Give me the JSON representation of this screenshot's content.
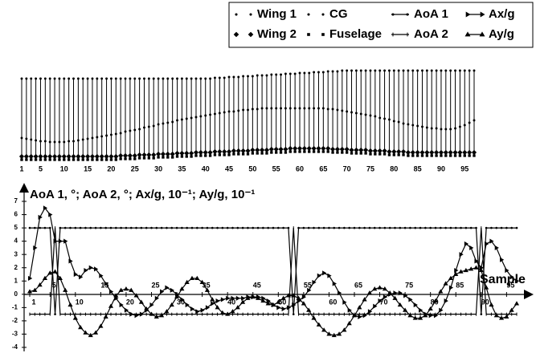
{
  "chart_data": [
    {
      "type": "stick",
      "x": [
        1,
        2,
        3,
        4,
        5,
        6,
        7,
        8,
        9,
        10,
        11,
        12,
        13,
        14,
        15,
        16,
        17,
        18,
        19,
        20,
        21,
        22,
        23,
        24,
        25,
        26,
        27,
        28,
        29,
        30,
        31,
        32,
        33,
        34,
        35,
        36,
        37,
        38,
        39,
        40,
        41,
        42,
        43,
        44,
        45,
        46,
        47,
        48,
        49,
        50,
        51,
        52,
        53,
        54,
        55,
        56,
        57,
        58,
        59,
        60,
        61,
        62,
        63,
        64,
        65,
        66,
        67,
        68,
        69,
        70,
        71,
        72,
        73,
        74,
        75,
        76,
        77,
        78,
        79,
        80,
        81,
        82,
        83,
        84,
        85,
        86,
        87,
        88,
        89,
        90,
        91,
        92,
        93,
        94,
        95,
        96,
        97
      ],
      "xlim": [
        1,
        97
      ],
      "ylim": [
        0,
        120
      ],
      "xticks": [
        1,
        5,
        10,
        15,
        20,
        25,
        30,
        35,
        40,
        45,
        50,
        55,
        60,
        65,
        70,
        75,
        80,
        85,
        90,
        95
      ],
      "series": [
        {
          "name": "Wing 1",
          "color": "#000",
          "marker": "circle",
          "line": false,
          "values": [
            107,
            107,
            107,
            107,
            107,
            107,
            107,
            107,
            107,
            107,
            107,
            107,
            107,
            107,
            107,
            107,
            107,
            107,
            107,
            107,
            107,
            107,
            107,
            107,
            107,
            107,
            107,
            107,
            107,
            107,
            107,
            107,
            107,
            107,
            107,
            107,
            107,
            107,
            107,
            107,
            107,
            108,
            108,
            108,
            109,
            109,
            109,
            110,
            110,
            110,
            111,
            111,
            111,
            112,
            112,
            112,
            113,
            113,
            113,
            114,
            114,
            114,
            115,
            115,
            115,
            116,
            116,
            116,
            117,
            117,
            117,
            117,
            117,
            117,
            117,
            117,
            117,
            117,
            117,
            117,
            117,
            117,
            117,
            117,
            117,
            117,
            117,
            117,
            117,
            117,
            117,
            117,
            117,
            117,
            117,
            117,
            117
          ]
        },
        {
          "name": "Wing 2",
          "color": "#000",
          "marker": "diamond",
          "line": false,
          "values": [
            10,
            10,
            10,
            10,
            10,
            10,
            10,
            10,
            10,
            10,
            10,
            10,
            10,
            10,
            10,
            10,
            10,
            10,
            10,
            10,
            10,
            11,
            11,
            11,
            11,
            12,
            12,
            12,
            12,
            13,
            13,
            13,
            13,
            14,
            14,
            14,
            14,
            15,
            15,
            15,
            15,
            16,
            16,
            16,
            16,
            17,
            17,
            17,
            17,
            18,
            18,
            18,
            18,
            19,
            19,
            19,
            19,
            20,
            20,
            20,
            20,
            20,
            20,
            20,
            20,
            20,
            19,
            19,
            19,
            19,
            18,
            18,
            18,
            18,
            17,
            17,
            17,
            17,
            16,
            16,
            16,
            16,
            15,
            15,
            15,
            15,
            15,
            15,
            15,
            15,
            15,
            15,
            15,
            15,
            15,
            15,
            15
          ]
        },
        {
          "name": "CG",
          "color": "#000",
          "marker": "circle",
          "line": false,
          "values": [
            33,
            32,
            31,
            30,
            29,
            29,
            28,
            28,
            28,
            28,
            29,
            29,
            30,
            31,
            32,
            33,
            34,
            35,
            36,
            37,
            38,
            39,
            41,
            42,
            43,
            44,
            46,
            47,
            48,
            50,
            51,
            52,
            53,
            55,
            56,
            57,
            58,
            59,
            60,
            61,
            62,
            63,
            64,
            65,
            66,
            66,
            67,
            68,
            68,
            69,
            69,
            70,
            70,
            70,
            70,
            70,
            70,
            70,
            70,
            70,
            70,
            70,
            70,
            70,
            70,
            69,
            69,
            68,
            67,
            66,
            65,
            64,
            63,
            62,
            61,
            60,
            58,
            57,
            56,
            54,
            53,
            51,
            50,
            49,
            48,
            47,
            46,
            45,
            45,
            44,
            44,
            44,
            45,
            47,
            49,
            52,
            55
          ]
        },
        {
          "name": "Fuselage",
          "color": "#000",
          "marker": "square",
          "line": false,
          "values": [
            6,
            6,
            6,
            6,
            6,
            6,
            6,
            6,
            6,
            6,
            6,
            6,
            6,
            6,
            6,
            6,
            6,
            6,
            6,
            6,
            6,
            7,
            7,
            7,
            7,
            8,
            8,
            8,
            8,
            9,
            9,
            9,
            9,
            10,
            10,
            10,
            10,
            11,
            11,
            11,
            11,
            12,
            12,
            12,
            12,
            13,
            13,
            13,
            13,
            14,
            14,
            14,
            14,
            15,
            15,
            15,
            15,
            16,
            16,
            16,
            16,
            16,
            16,
            16,
            16,
            16,
            15,
            15,
            15,
            15,
            14,
            14,
            14,
            14,
            13,
            13,
            13,
            13,
            12,
            12,
            12,
            12,
            11,
            11,
            11,
            11,
            11,
            11,
            11,
            11,
            11,
            11,
            11,
            11,
            11,
            11,
            11
          ]
        }
      ]
    },
    {
      "type": "line",
      "title": "AoA 1, °; AoA 2, °; Ax/g, 10⁻¹; Ay/g, 10⁻¹",
      "x_label": "Sample",
      "x": [
        1,
        2,
        3,
        4,
        5,
        6,
        7,
        8,
        9,
        10,
        11,
        12,
        13,
        14,
        15,
        16,
        17,
        18,
        19,
        20,
        21,
        22,
        23,
        24,
        25,
        26,
        27,
        28,
        29,
        30,
        31,
        32,
        33,
        34,
        35,
        36,
        37,
        38,
        39,
        40,
        41,
        42,
        43,
        44,
        45,
        46,
        47,
        48,
        49,
        50,
        51,
        52,
        53,
        54,
        55,
        56,
        57,
        58,
        59,
        60,
        61,
        62,
        63,
        64,
        65,
        66,
        67,
        68,
        69,
        70,
        71,
        72,
        73,
        74,
        75,
        76,
        77,
        78,
        79,
        80,
        81,
        82,
        83,
        84,
        85,
        86,
        87,
        88,
        89,
        90,
        91,
        92,
        93,
        94,
        95,
        96,
        97
      ],
      "xlim": [
        1,
        97
      ],
      "ylim": [
        -4,
        7
      ],
      "xticks": [
        1,
        5,
        10,
        15,
        20,
        25,
        30,
        35,
        40,
        45,
        50,
        55,
        60,
        65,
        70,
        75,
        80,
        85,
        90,
        95
      ],
      "yticks": [
        -4,
        -3,
        -2,
        -1,
        0,
        1,
        2,
        3,
        4,
        5,
        6,
        7
      ],
      "series": [
        {
          "name": "AoA 1",
          "color": "#000",
          "marker": "circle",
          "line": true,
          "values": [
            5,
            5,
            5,
            5,
            5,
            -1.5,
            5,
            5,
            5,
            5,
            5,
            5,
            5,
            5,
            5,
            5,
            5,
            5,
            5,
            5,
            5,
            5,
            5,
            5,
            5,
            5,
            5,
            5,
            5,
            5,
            5,
            5,
            5,
            5,
            5,
            5,
            5,
            5,
            5,
            5,
            5,
            5,
            5,
            5,
            5,
            5,
            5,
            5,
            5,
            5,
            5,
            5,
            -1.5,
            5,
            5,
            5,
            5,
            5,
            5,
            5,
            5,
            5,
            5,
            5,
            5,
            5,
            5,
            5,
            5,
            5,
            5,
            5,
            5,
            5,
            5,
            5,
            5,
            5,
            5,
            5,
            5,
            5,
            5,
            5,
            5,
            5,
            5,
            5,
            5,
            -1.5,
            5,
            5,
            5,
            5,
            5,
            5,
            5
          ]
        },
        {
          "name": "AoA 2",
          "color": "#000",
          "marker": "tick",
          "line": true,
          "values": [
            -1.5,
            -1.5,
            -1.5,
            -1.5,
            -1.5,
            5,
            -1.5,
            -1.5,
            -1.5,
            -1.5,
            -1.5,
            -1.5,
            -1.5,
            -1.5,
            -1.5,
            -1.5,
            -1.5,
            -1.5,
            -1.5,
            -1.5,
            -1.5,
            -1.5,
            -1.5,
            -1.5,
            -1.5,
            -1.5,
            -1.5,
            -1.5,
            -1.5,
            -1.5,
            -1.5,
            -1.5,
            -1.5,
            -1.5,
            -1.5,
            -1.5,
            -1.5,
            -1.5,
            -1.5,
            -1.5,
            -1.5,
            -1.5,
            -1.5,
            -1.5,
            -1.5,
            -1.5,
            -1.5,
            -1.5,
            -1.5,
            -1.5,
            -1.5,
            -1.5,
            5,
            -1.5,
            -1.5,
            -1.5,
            -1.5,
            -1.5,
            -1.5,
            -1.5,
            -1.5,
            -1.5,
            -1.5,
            -1.5,
            -1.5,
            -1.5,
            -1.5,
            -1.5,
            -1.5,
            -1.5,
            -1.5,
            -1.5,
            -1.5,
            -1.5,
            -1.5,
            -1.5,
            -1.5,
            -1.5,
            -1.5,
            -1.5,
            -1.5,
            -1.5,
            -1.5,
            -1.5,
            -1.5,
            -1.5,
            -1.5,
            -1.5,
            -1.5,
            5,
            -1.5,
            -1.5,
            -1.5,
            -1.5,
            -1.5,
            -1.5,
            -1.5
          ]
        },
        {
          "name": "Ax/g",
          "color": "#000",
          "marker": "right",
          "line": true,
          "values": [
            1.2,
            3.5,
            5.8,
            6.5,
            6.0,
            4.0,
            4.0,
            4.0,
            2.5,
            1.5,
            1.3,
            1.8,
            2.0,
            1.9,
            1.4,
            0.8,
            0.2,
            -0.3,
            -0.8,
            -1.2,
            -1.5,
            -1.6,
            -1.5,
            -1.2,
            -0.8,
            -0.3,
            0.2,
            0.5,
            0.3,
            0,
            -0.4,
            -0.8,
            -1.1,
            -1.3,
            -1.2,
            -1.0,
            -0.7,
            -0.5,
            -0.4,
            -0.3,
            -0.3,
            -0.3,
            -0.3,
            -0.2,
            -0.2,
            -0.2,
            -0.3,
            -0.5,
            -0.8,
            -1.0,
            -1.1,
            -1.0,
            -0.8,
            -0.5,
            -0.2,
            0.3,
            0.9,
            1.4,
            1.6,
            1.4,
            0.8,
            0.1,
            -0.6,
            -1.2,
            -1.6,
            -1.7,
            -1.6,
            -1.3,
            -0.9,
            -0.5,
            -0.2,
            0,
            0.1,
            0.1,
            -0.1,
            -0.4,
            -0.8,
            -1.2,
            -1.5,
            -1.6,
            -1.6,
            -1.2,
            -0.5,
            0.5,
            1.8,
            3.0,
            3.8,
            3.5,
            2.5,
            2.0,
            3.8,
            4.0,
            3.5,
            2.6,
            1.8,
            1.3,
            1.0
          ]
        },
        {
          "name": "Ay/g",
          "color": "#000",
          "marker": "up",
          "line": true,
          "values": [
            0.2,
            0.3,
            0.7,
            1.2,
            1.6,
            1.7,
            1.2,
            0.3,
            -0.8,
            -1.8,
            -2.5,
            -2.9,
            -3.1,
            -2.9,
            -2.4,
            -1.7,
            -0.9,
            -0.1,
            0.3,
            0.4,
            0.3,
            -0.1,
            -0.6,
            -1.1,
            -1.5,
            -1.7,
            -1.6,
            -1.3,
            -0.8,
            -0.2,
            0.4,
            0.9,
            1.2,
            1.2,
            0.9,
            0.3,
            -0.4,
            -1.0,
            -1.4,
            -1.5,
            -1.3,
            -1.0,
            -0.6,
            -0.3,
            -0.2,
            -0.3,
            -0.5,
            -0.7,
            -0.8,
            -0.6,
            -0.3,
            -0.1,
            -0.1,
            -0.3,
            -0.7,
            -1.2,
            -1.8,
            -2.3,
            -2.7,
            -3.0,
            -3.1,
            -3.0,
            -2.7,
            -2.2,
            -1.6,
            -1.0,
            -0.4,
            0.1,
            0.4,
            0.5,
            0.4,
            0.1,
            -0.3,
            -0.8,
            -1.2,
            -1.6,
            -1.8,
            -1.8,
            -1.6,
            -1.1,
            -0.5,
            0.2,
            0.8,
            1.2,
            1.5,
            1.7,
            1.8,
            1.9,
            2.0,
            1.8,
            0.5,
            -0.8,
            -1.6,
            -1.8,
            -1.7,
            -1.2,
            -0.7
          ]
        }
      ]
    }
  ]
}
